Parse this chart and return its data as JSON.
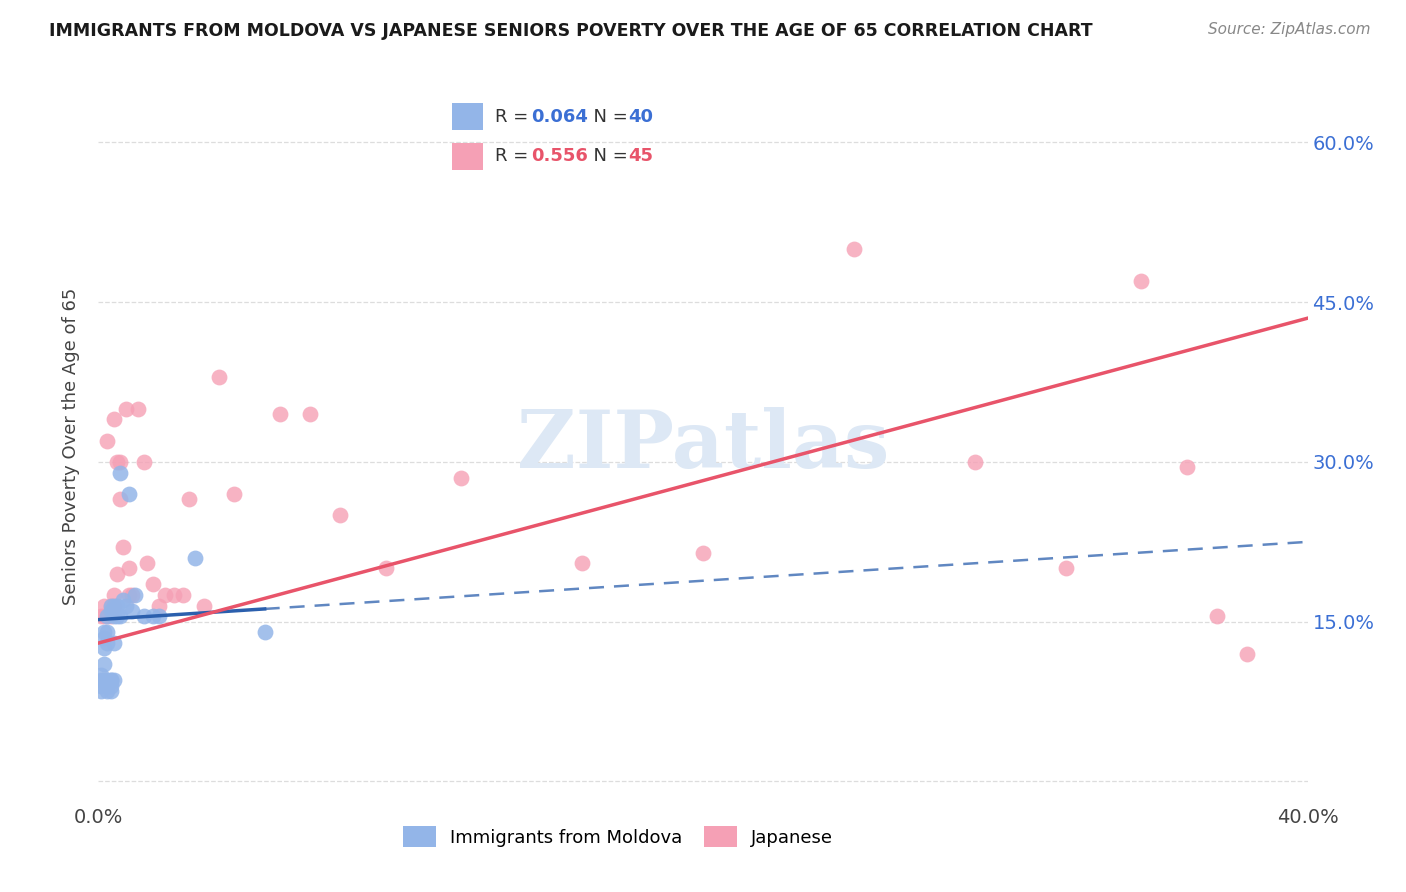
{
  "title": "IMMIGRANTS FROM MOLDOVA VS JAPANESE SENIORS POVERTY OVER THE AGE OF 65 CORRELATION CHART",
  "source": "Source: ZipAtlas.com",
  "ylabel": "Seniors Poverty Over the Age of 65",
  "yticks": [
    0.0,
    0.15,
    0.3,
    0.45,
    0.6
  ],
  "ytick_labels": [
    "",
    "15.0%",
    "30.0%",
    "45.0%",
    "60.0%"
  ],
  "xlim": [
    0.0,
    0.4
  ],
  "ylim": [
    -0.02,
    0.65
  ],
  "moldova_R": 0.064,
  "moldova_N": 40,
  "japanese_R": 0.556,
  "japanese_N": 45,
  "moldova_color": "#93b5e8",
  "japanese_color": "#f5a0b5",
  "moldova_line_color": "#2b5fad",
  "japanese_line_color": "#e8546a",
  "legend_color_blue": "#3b6fd4",
  "legend_color_pink": "#e8546a",
  "moldova_x": [
    0.001,
    0.001,
    0.001,
    0.001,
    0.002,
    0.002,
    0.002,
    0.002,
    0.002,
    0.003,
    0.003,
    0.003,
    0.003,
    0.003,
    0.003,
    0.004,
    0.004,
    0.004,
    0.004,
    0.004,
    0.004,
    0.005,
    0.005,
    0.005,
    0.005,
    0.005,
    0.006,
    0.006,
    0.007,
    0.007,
    0.008,
    0.009,
    0.01,
    0.011,
    0.012,
    0.015,
    0.018,
    0.02,
    0.032,
    0.055
  ],
  "moldova_y": [
    0.085,
    0.09,
    0.095,
    0.1,
    0.095,
    0.11,
    0.125,
    0.135,
    0.14,
    0.085,
    0.09,
    0.095,
    0.13,
    0.14,
    0.155,
    0.085,
    0.09,
    0.095,
    0.095,
    0.16,
    0.165,
    0.095,
    0.13,
    0.155,
    0.16,
    0.165,
    0.155,
    0.165,
    0.155,
    0.29,
    0.17,
    0.165,
    0.27,
    0.16,
    0.175,
    0.155,
    0.155,
    0.155,
    0.21,
    0.14
  ],
  "japanese_x": [
    0.001,
    0.002,
    0.002,
    0.003,
    0.003,
    0.004,
    0.004,
    0.005,
    0.005,
    0.005,
    0.006,
    0.006,
    0.007,
    0.007,
    0.008,
    0.009,
    0.01,
    0.01,
    0.011,
    0.013,
    0.015,
    0.016,
    0.018,
    0.02,
    0.022,
    0.025,
    0.028,
    0.03,
    0.035,
    0.04,
    0.045,
    0.06,
    0.07,
    0.08,
    0.095,
    0.12,
    0.16,
    0.2,
    0.25,
    0.29,
    0.32,
    0.345,
    0.36,
    0.37,
    0.38
  ],
  "japanese_y": [
    0.155,
    0.155,
    0.165,
    0.155,
    0.32,
    0.155,
    0.165,
    0.165,
    0.175,
    0.34,
    0.195,
    0.3,
    0.3,
    0.265,
    0.22,
    0.35,
    0.175,
    0.2,
    0.175,
    0.35,
    0.3,
    0.205,
    0.185,
    0.165,
    0.175,
    0.175,
    0.175,
    0.265,
    0.165,
    0.38,
    0.27,
    0.345,
    0.345,
    0.25,
    0.2,
    0.285,
    0.205,
    0.215,
    0.5,
    0.3,
    0.2,
    0.47,
    0.295,
    0.155,
    0.12
  ],
  "background_color": "#ffffff",
  "grid_color": "#d5d5d5",
  "watermark_text": "ZIPatlas",
  "watermark_color": "#dde8f5"
}
